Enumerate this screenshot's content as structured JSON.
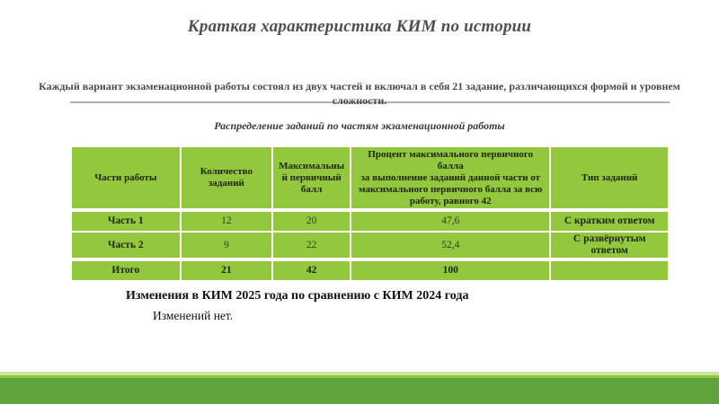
{
  "slide": {
    "title": "Краткая характеристика КИМ по истории",
    "intro": "Каждый вариант экзаменационной работы состоял из двух частей и включал в себя 21 задание, различающихся формой и уровнем сложности.",
    "table_caption": "Распределение заданий по частям экзаменационной работы",
    "changes_heading": "Изменения в КИМ 2025 года по сравнению с КИМ 2024 года",
    "changes_text": "Изменений нет."
  },
  "table": {
    "headers": [
      "Части работы",
      "Количество заданий",
      "Максимальный первичный балл",
      "Процент максимального первичного балла\nза выполнение заданий данной части от максимального первичного балла за всю работу, равного 42",
      "Тип заданий"
    ],
    "rows": [
      {
        "part": "Часть 1",
        "count": "12",
        "max_score": "20",
        "percent": "47,6",
        "type": "С кратким ответом"
      },
      {
        "part": "Часть 2",
        "count": "9",
        "max_score": "22",
        "percent": "52,4",
        "type": "С развёрнутым ответом"
      },
      {
        "part": "Итого",
        "count": "21",
        "max_score": "42",
        "percent": "100",
        "type": ""
      }
    ]
  },
  "colors": {
    "table_cell_green": "#92c73e",
    "band_green_dark": "#60a33a",
    "band_green_mid": "#8dc63f",
    "band_green_light": "#cde3a1",
    "divider_gray": "#b0b0b0",
    "title_gray": "#4d5156"
  }
}
